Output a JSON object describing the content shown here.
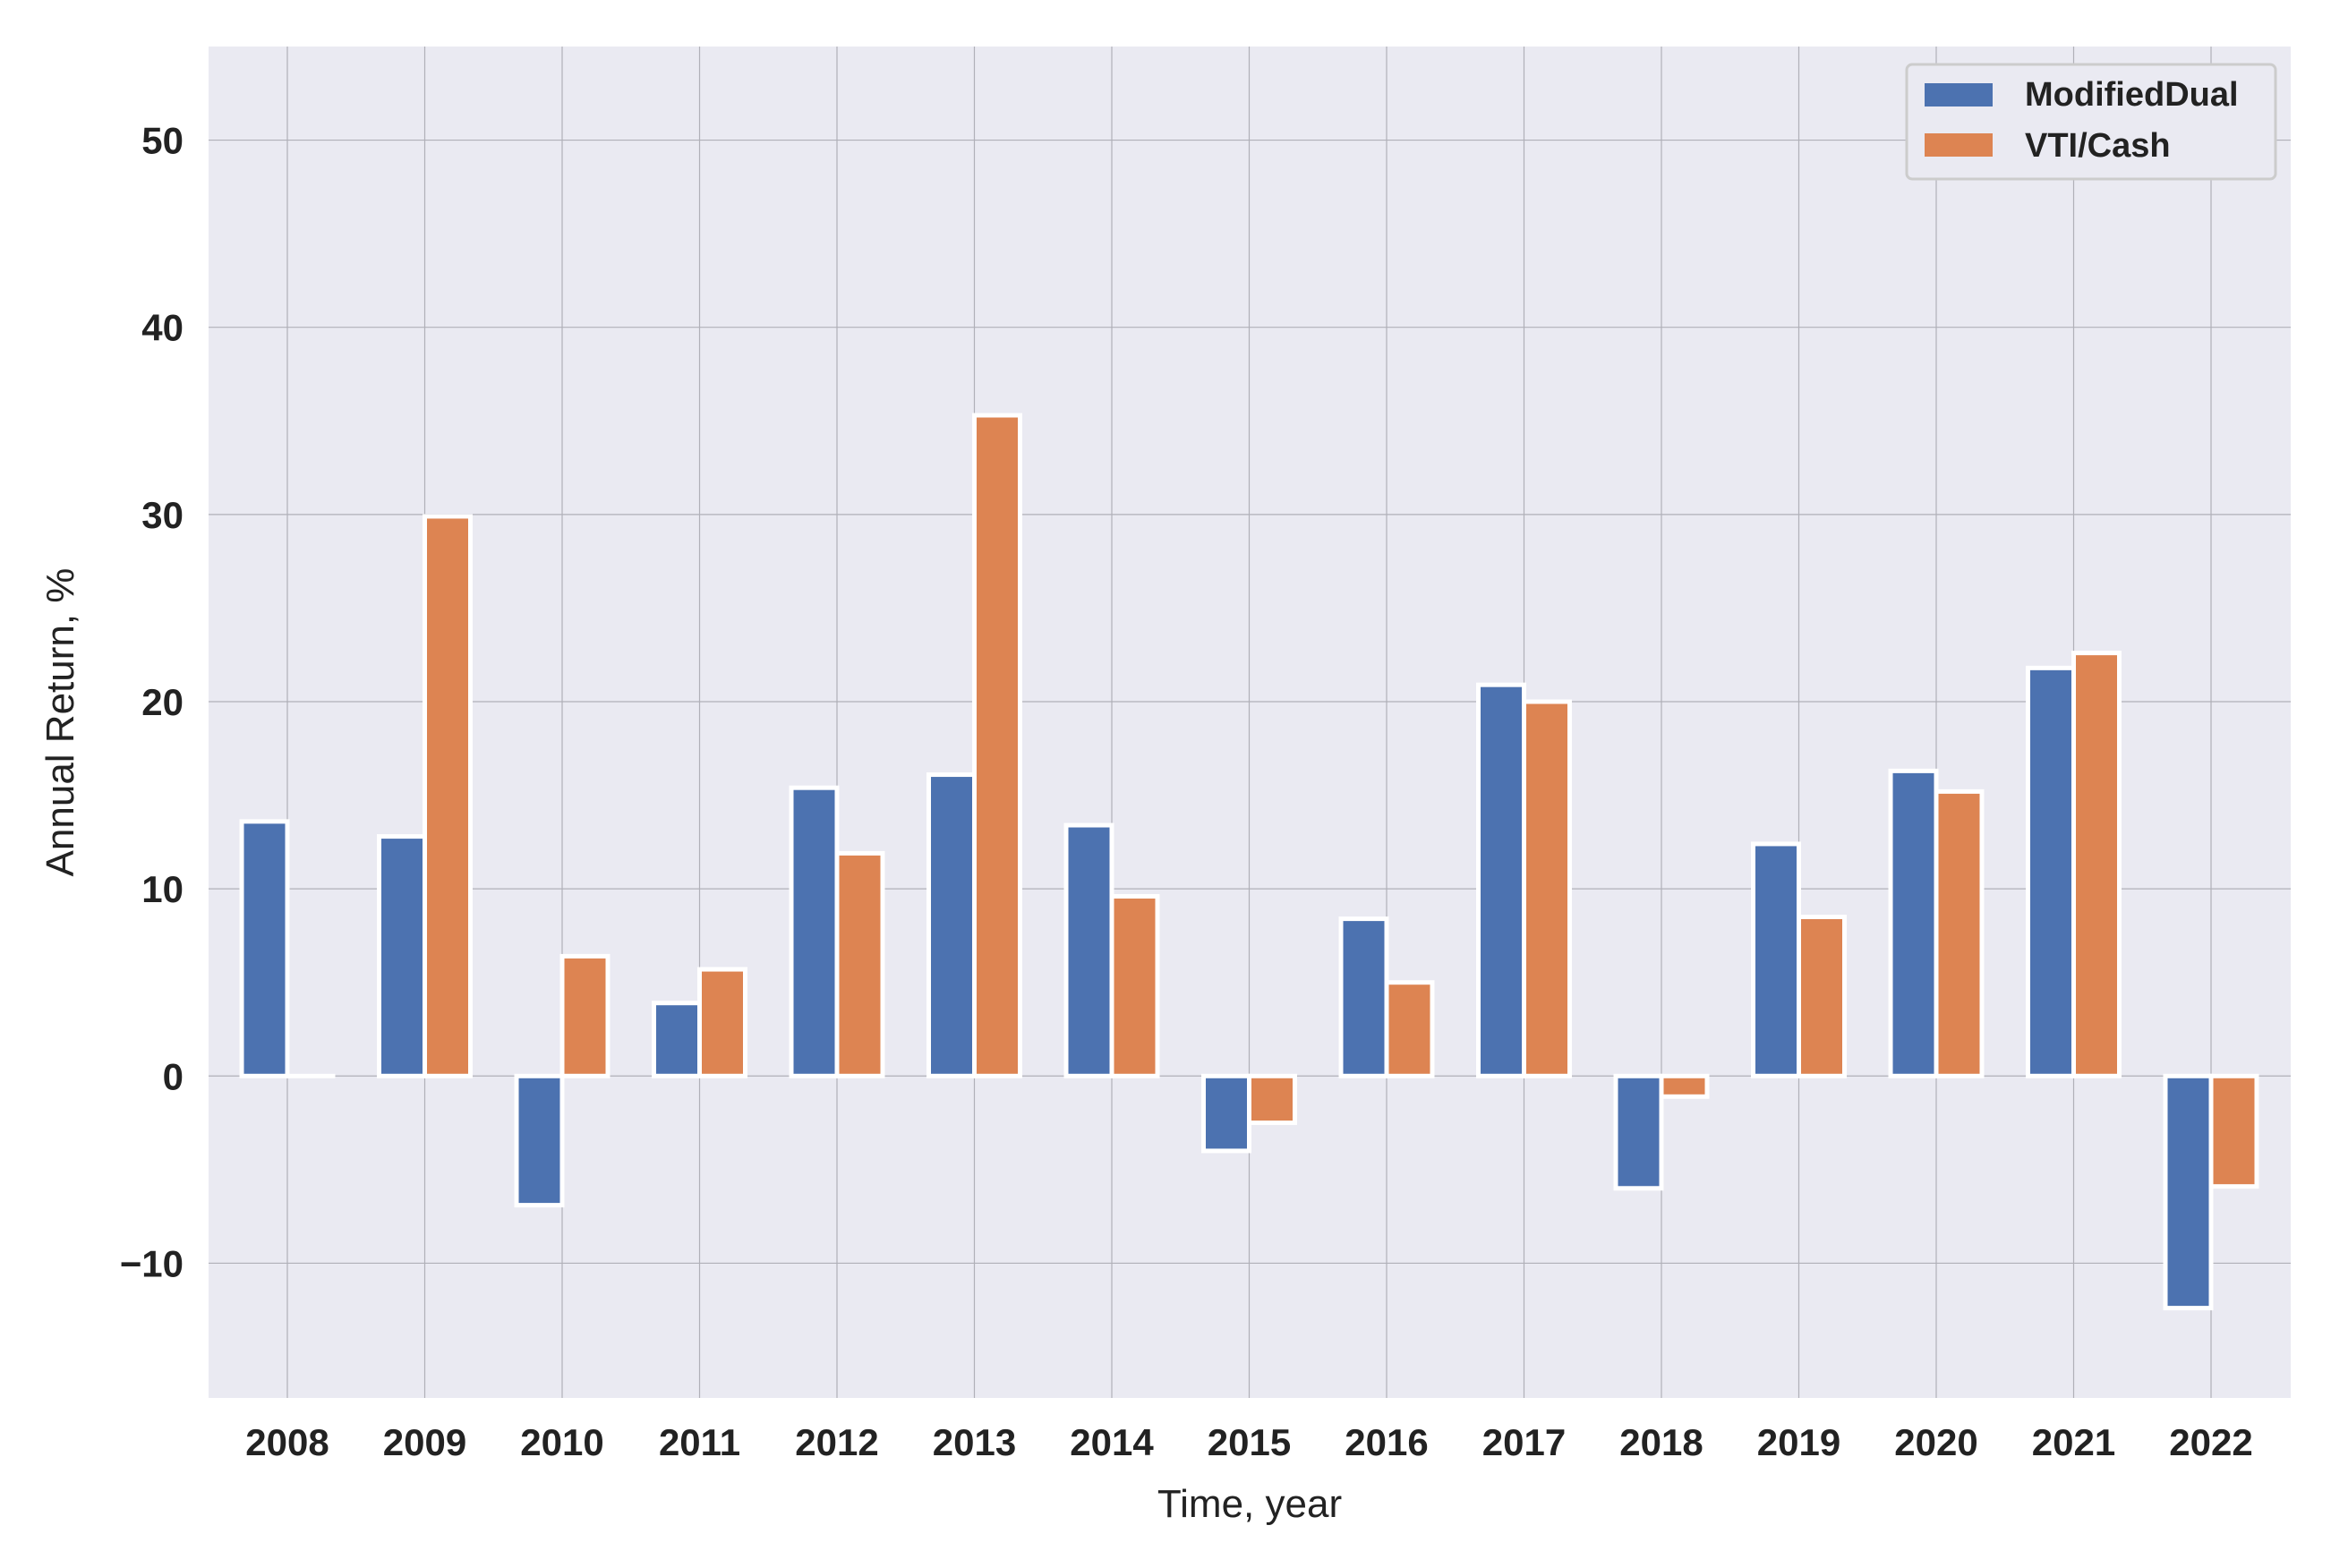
{
  "chart_data": {
    "type": "bar",
    "title": "",
    "xlabel": "Time, year",
    "ylabel": "Annual Return, %",
    "categories": [
      "2008",
      "2009",
      "2010",
      "2011",
      "2012",
      "2013",
      "2014",
      "2015",
      "2016",
      "2017",
      "2018",
      "2019",
      "2020",
      "2021",
      "2022"
    ],
    "series": [
      {
        "name": "ModifiedDual",
        "color": "#4C72B0",
        "values": [
          13.6,
          12.8,
          -6.9,
          3.9,
          15.4,
          16.1,
          13.4,
          -4.0,
          8.4,
          20.9,
          -6.0,
          12.4,
          16.3,
          21.8,
          -12.4
        ]
      },
      {
        "name": "VTI/Cash",
        "color": "#DD8452",
        "values": [
          0.0,
          29.9,
          6.4,
          5.7,
          11.9,
          35.3,
          9.6,
          -2.5,
          5.0,
          20.0,
          -1.1,
          8.5,
          15.2,
          22.6,
          -5.9
        ]
      }
    ],
    "yticks": [
      "50",
      "40",
      "30",
      "20",
      "10",
      "0",
      "−10"
    ],
    "ylim": [
      -17.2,
      55
    ],
    "grid": true,
    "legend": "top-right",
    "background_color": "#EAEAF2"
  }
}
